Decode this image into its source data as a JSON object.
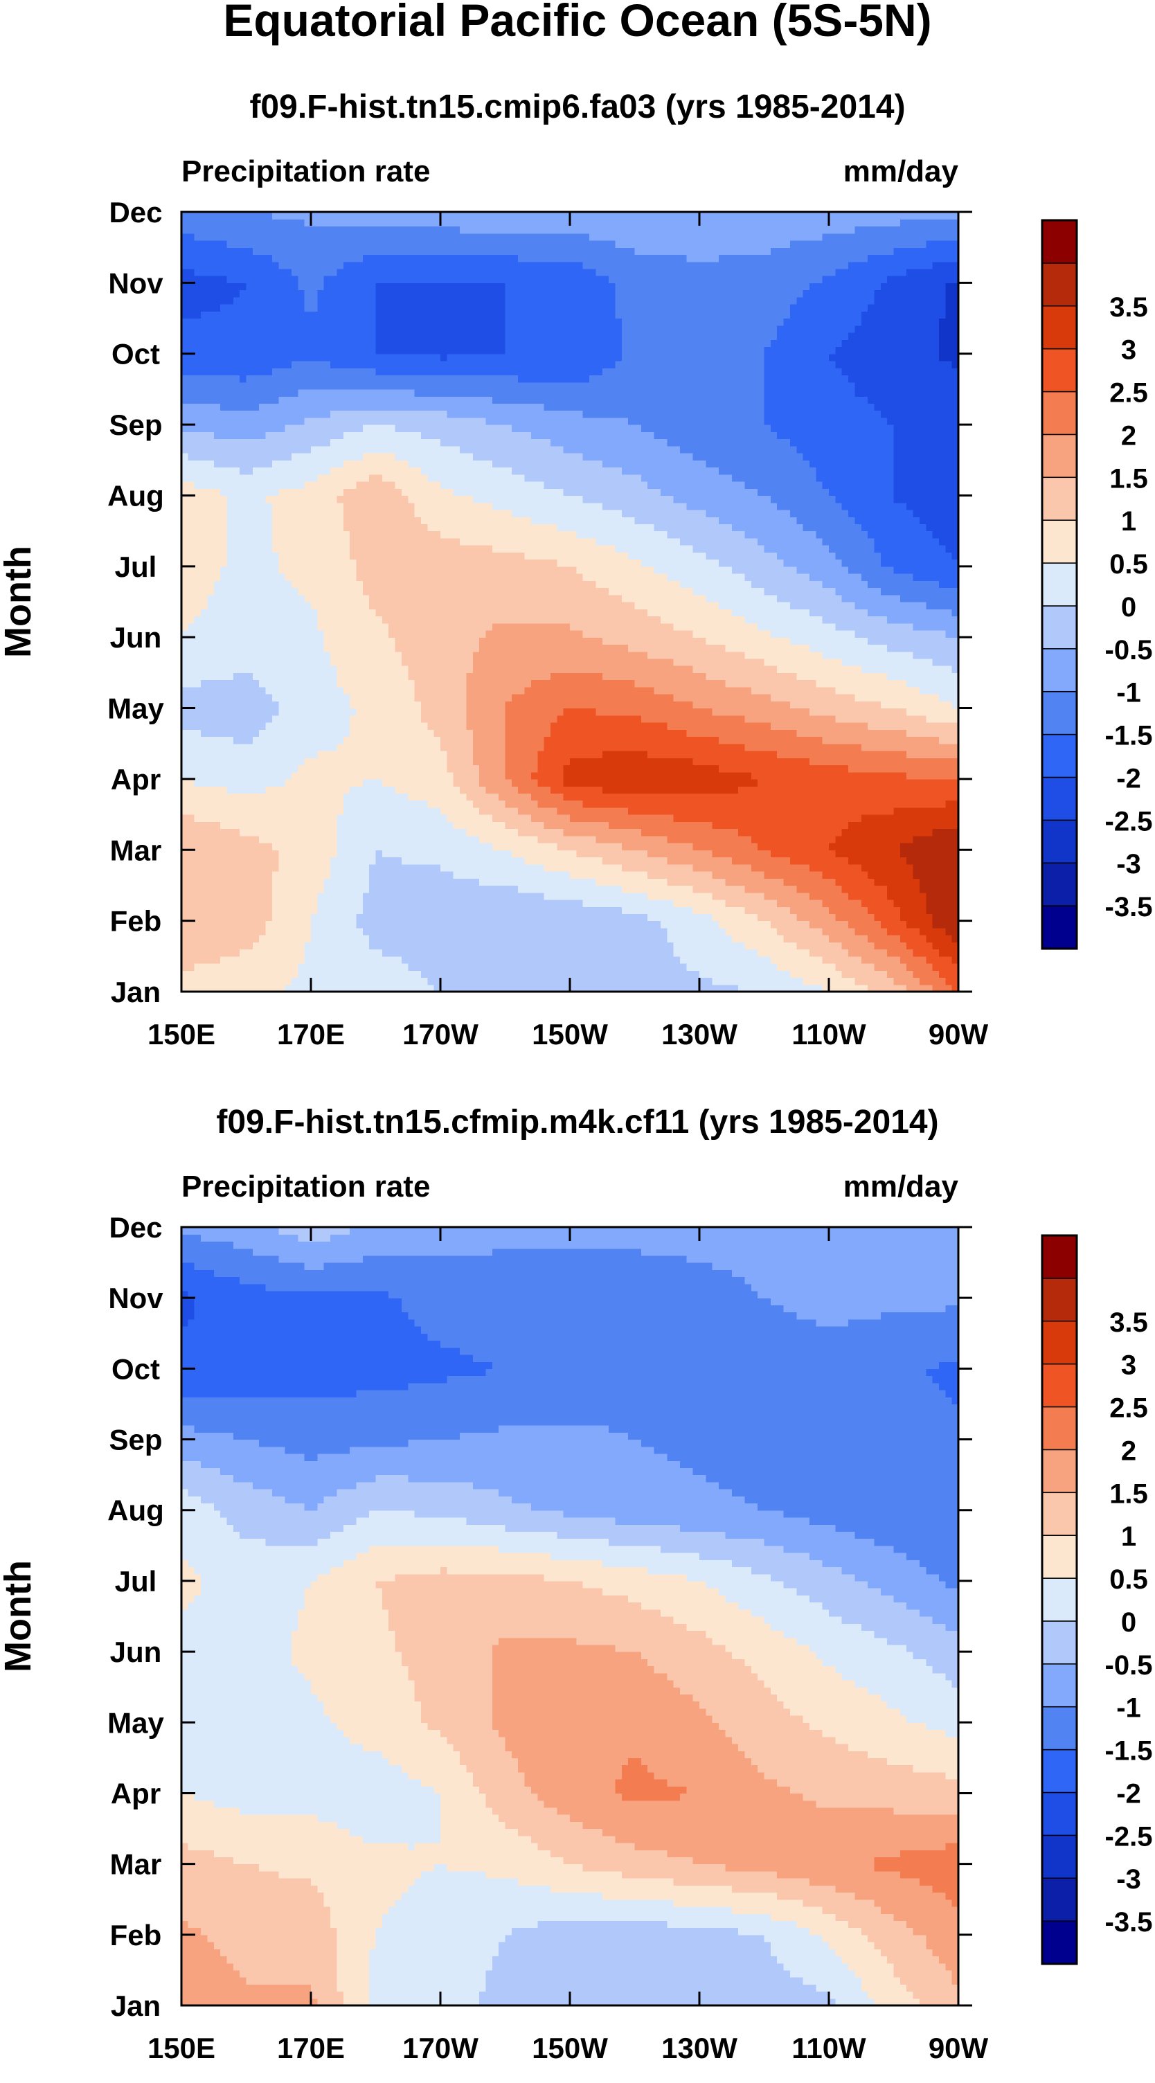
{
  "figure": {
    "title": "Equatorial Pacific Ocean (5S-5N)"
  },
  "chart_data": [
    {
      "type": "heatmap",
      "title": "f09.F-hist.tn15.cmip6.fa03 (yrs 1985-2014)",
      "left_label": "Precipitation rate",
      "units": "mm/day",
      "ylabel": "Month",
      "xlabel": "",
      "x_ticks": [
        "150E",
        "170E",
        "170W",
        "150W",
        "130W",
        "110W",
        "90W"
      ],
      "x_tick_values_degE": [
        150,
        170,
        190,
        210,
        230,
        250,
        270
      ],
      "y_ticks": [
        "Jan",
        "Feb",
        "Mar",
        "Apr",
        "May",
        "Jun",
        "Jul",
        "Aug",
        "Sep",
        "Oct",
        "Nov",
        "Dec"
      ],
      "xlim_degE": [
        150,
        270
      ],
      "ylim_month": [
        1,
        12
      ],
      "grid_longitudes_degE": [
        150,
        160,
        170,
        180,
        190,
        200,
        210,
        220,
        230,
        240,
        250,
        260,
        270
      ],
      "values": [
        [
          0.8,
          0.6,
          0.4,
          0.3,
          0.0,
          -0.2,
          -0.3,
          -0.2,
          -0.1,
          0.0,
          0.5,
          1.2,
          2.5
        ],
        [
          1.5,
          1.3,
          0.5,
          -0.2,
          -0.3,
          -0.5,
          -0.4,
          -0.2,
          0.3,
          1.0,
          1.8,
          2.8,
          4.0
        ],
        [
          1.5,
          1.2,
          0.8,
          0.0,
          0.1,
          0.5,
          1.0,
          1.5,
          2.0,
          2.5,
          3.0,
          3.5,
          4.0
        ],
        [
          0.5,
          0.3,
          0.6,
          0.5,
          0.8,
          2.0,
          3.2,
          3.4,
          3.3,
          3.0,
          2.8,
          2.6,
          2.5
        ],
        [
          -0.2,
          -0.3,
          0.3,
          0.6,
          1.2,
          2.0,
          2.5,
          2.4,
          2.0,
          1.7,
          1.3,
          1.0,
          0.5
        ],
        [
          0.5,
          0.3,
          0.4,
          0.9,
          1.3,
          1.6,
          1.6,
          1.3,
          1.0,
          0.6,
          0.2,
          -0.2,
          -0.5
        ],
        [
          0.7,
          0.4,
          0.6,
          1.2,
          1.3,
          1.2,
          1.0,
          0.6,
          0.2,
          -0.3,
          -0.8,
          -1.6,
          -2.0
        ],
        [
          0.8,
          0.4,
          0.7,
          1.4,
          0.6,
          0.3,
          0.0,
          -0.3,
          -0.7,
          -1.0,
          -1.5,
          -2.0,
          -2.4
        ],
        [
          -0.6,
          -0.8,
          -0.4,
          0.0,
          -0.2,
          -0.5,
          -0.8,
          -1.0,
          -1.3,
          -1.5,
          -1.8,
          -2.0,
          -2.2
        ],
        [
          -1.8,
          -1.9,
          -1.6,
          -2.0,
          -2.1,
          -2.0,
          -2.0,
          -1.4,
          -1.4,
          -1.5,
          -2.0,
          -2.3,
          -2.6
        ],
        [
          -2.2,
          -2.0,
          -1.4,
          -2.0,
          -2.0,
          -2.0,
          -1.9,
          -1.3,
          -1.2,
          -1.2,
          -1.6,
          -2.1,
          -2.6
        ],
        [
          -1.2,
          -1.0,
          -0.9,
          -0.8,
          -0.7,
          -0.6,
          -0.6,
          -0.6,
          -0.6,
          -0.7,
          -0.7,
          -0.8,
          -0.8
        ]
      ],
      "colorbar": {
        "levels": [
          -3.5,
          -3,
          -2.5,
          -2,
          -1.5,
          -1,
          -0.5,
          0,
          0.5,
          1,
          1.5,
          2,
          2.5,
          3,
          3.5
        ],
        "labels": [
          "-3.5",
          "-3",
          "-2.5",
          "-2",
          "-1.5",
          "-1",
          "-0.5",
          "0",
          "0.5",
          "1",
          "1.5",
          "2",
          "2.5",
          "3",
          "3.5"
        ],
        "colors": [
          "#00008f",
          "#0b1fa8",
          "#1035c8",
          "#1f4ee6",
          "#2f66f6",
          "#5183f3",
          "#82a9fb",
          "#b1c8fb",
          "#daeafb",
          "#fde6d0",
          "#fac7ac",
          "#f8a380",
          "#f47c51",
          "#ef5524",
          "#d83a0b",
          "#b52a0a",
          "#8d0000"
        ]
      }
    },
    {
      "type": "heatmap",
      "title": "f09.F-hist.tn15.cfmip.m4k.cf11 (yrs 1985-2014)",
      "left_label": "Precipitation rate",
      "units": "mm/day",
      "ylabel": "Month",
      "xlabel": "",
      "x_ticks": [
        "150E",
        "170E",
        "170W",
        "150W",
        "130W",
        "110W",
        "90W"
      ],
      "x_tick_values_degE": [
        150,
        170,
        190,
        210,
        230,
        250,
        270
      ],
      "y_ticks": [
        "Jan",
        "Feb",
        "Mar",
        "Apr",
        "May",
        "Jun",
        "Jul",
        "Aug",
        "Sep",
        "Oct",
        "Nov",
        "Dec"
      ],
      "xlim_degE": [
        150,
        270
      ],
      "ylim_month": [
        1,
        12
      ],
      "grid_longitudes_degE": [
        150,
        160,
        170,
        180,
        190,
        200,
        210,
        220,
        230,
        240,
        250,
        260,
        270
      ],
      "values": [
        [
          1.9,
          1.6,
          1.6,
          0.3,
          0.3,
          -0.2,
          -0.4,
          -0.4,
          -0.3,
          -0.3,
          -0.1,
          0.7,
          1.4
        ],
        [
          1.6,
          1.3,
          1.3,
          0.5,
          0.3,
          0.0,
          -0.3,
          -0.3,
          -0.2,
          0.0,
          0.6,
          1.3,
          1.8
        ],
        [
          1.2,
          1.0,
          0.9,
          0.6,
          0.5,
          0.6,
          1.0,
          1.3,
          1.5,
          1.7,
          1.9,
          2.1,
          2.3
        ],
        [
          0.5,
          0.3,
          0.3,
          0.2,
          0.5,
          1.3,
          1.8,
          2.1,
          2.0,
          1.6,
          1.4,
          1.3,
          1.2
        ],
        [
          0.4,
          0.3,
          0.4,
          0.7,
          1.1,
          1.6,
          1.9,
          1.9,
          1.6,
          1.2,
          0.9,
          0.6,
          0.3
        ],
        [
          0.4,
          0.3,
          0.6,
          0.9,
          1.2,
          1.6,
          1.6,
          1.5,
          1.2,
          0.8,
          0.4,
          0.1,
          -0.3
        ],
        [
          0.6,
          0.3,
          0.5,
          1.0,
          1.2,
          1.2,
          1.0,
          0.8,
          0.5,
          0.1,
          -0.3,
          -0.7,
          -1.1
        ],
        [
          0.3,
          -0.2,
          -0.5,
          0.0,
          -0.1,
          -0.4,
          -0.6,
          -0.8,
          -0.9,
          -1.0,
          -1.2,
          -1.4,
          -1.5
        ],
        [
          -0.8,
          -1.0,
          -1.2,
          -1.1,
          -1.0,
          -0.9,
          -0.9,
          -1.0,
          -1.1,
          -1.2,
          -1.3,
          -1.4,
          -1.4
        ],
        [
          -1.9,
          -1.8,
          -1.7,
          -1.7,
          -1.6,
          -1.5,
          -1.3,
          -1.2,
          -1.2,
          -1.3,
          -1.3,
          -1.4,
          -1.6
        ],
        [
          -2.1,
          -1.7,
          -1.6,
          -1.6,
          -1.3,
          -1.2,
          -1.2,
          -1.2,
          -1.1,
          -1.0,
          -0.8,
          -0.9,
          -0.9
        ],
        [
          -0.9,
          -0.7,
          -0.2,
          -0.6,
          -0.8,
          -0.9,
          -0.9,
          -0.9,
          -0.9,
          -0.9,
          -0.9,
          -0.9,
          -0.9
        ]
      ],
      "colorbar": {
        "levels": [
          -3.5,
          -3,
          -2.5,
          -2,
          -1.5,
          -1,
          -0.5,
          0,
          0.5,
          1,
          1.5,
          2,
          2.5,
          3,
          3.5
        ],
        "labels": [
          "-3.5",
          "-3",
          "-2.5",
          "-2",
          "-1.5",
          "-1",
          "-0.5",
          "0",
          "0.5",
          "1",
          "1.5",
          "2",
          "2.5",
          "3",
          "3.5"
        ],
        "colors": [
          "#00008f",
          "#0b1fa8",
          "#1035c8",
          "#1f4ee6",
          "#2f66f6",
          "#5183f3",
          "#82a9fb",
          "#b1c8fb",
          "#daeafb",
          "#fde6d0",
          "#fac7ac",
          "#f8a380",
          "#f47c51",
          "#ef5524",
          "#d83a0b",
          "#b52a0a",
          "#8d0000"
        ]
      }
    }
  ]
}
